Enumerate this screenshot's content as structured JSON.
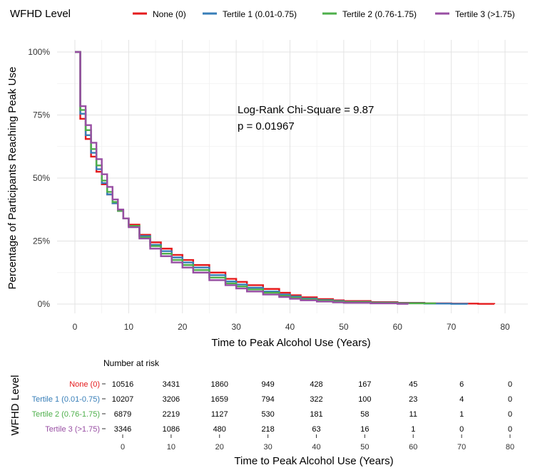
{
  "legend": {
    "title": "WFHD Level",
    "entries": [
      {
        "label": "None (0)",
        "color": "#e41a1c"
      },
      {
        "label": "Tertile 1 (0.01-0.75)",
        "color": "#377eb8"
      },
      {
        "label": "Tertile 2 (0.76-1.75)",
        "color": "#4daf4a"
      },
      {
        "label": "Tertile 3 (>1.75)",
        "color": "#984ea3"
      }
    ]
  },
  "annotation": {
    "line1": "Log-Rank Chi-Square = 9.87",
    "line2": "p = 0.01967"
  },
  "risk_table": {
    "title": "Number at risk",
    "ylabel": "WFHD Level",
    "xlabel": "Time to Peak Alcohol Use (Years)",
    "x_ticks": [
      "0",
      "10",
      "20",
      "30",
      "40",
      "50",
      "60",
      "70",
      "80"
    ],
    "rows": [
      {
        "label": "None (0)",
        "color": "#e41a1c",
        "values": [
          "10516",
          "3431",
          "1860",
          "949",
          "428",
          "167",
          "45",
          "6",
          "0"
        ]
      },
      {
        "label": "Tertile 1 (0.01-0.75)",
        "color": "#377eb8",
        "values": [
          "10207",
          "3206",
          "1659",
          "794",
          "322",
          "100",
          "23",
          "4",
          "0"
        ]
      },
      {
        "label": "Tertile 2 (0.76-1.75)",
        "color": "#4daf4a",
        "values": [
          "6879",
          "2219",
          "1127",
          "530",
          "181",
          "58",
          "11",
          "1",
          "0"
        ]
      },
      {
        "label": "Tertile 3 (>1.75)",
        "color": "#984ea3",
        "values": [
          "3346",
          "1086",
          "480",
          "218",
          "63",
          "16",
          "1",
          "0",
          "0"
        ]
      }
    ]
  },
  "chart_data": {
    "type": "line",
    "step": true,
    "xlabel": "Time to Peak Alcohol Use (Years)",
    "ylabel": "Percentage of Participants Reaching Peak Use",
    "xlim": [
      0,
      80
    ],
    "ylim": [
      0,
      1
    ],
    "x_ticks": [
      "0",
      "10",
      "20",
      "30",
      "40",
      "50",
      "60",
      "70",
      "80"
    ],
    "y_ticks": [
      "0%",
      "25%",
      "50%",
      "75%",
      "100%"
    ],
    "grid": true,
    "legend_position": "top",
    "series": [
      {
        "name": "None (0)",
        "color": "#e41a1c",
        "x": [
          0,
          1,
          2,
          3,
          4,
          5,
          6,
          7,
          8,
          9,
          10,
          12,
          14,
          16,
          18,
          20,
          22,
          25,
          28,
          30,
          32,
          35,
          38,
          40,
          42,
          45,
          48,
          50,
          55,
          60,
          65,
          70,
          75,
          78
        ],
        "y": [
          1,
          0.735,
          0.655,
          0.585,
          0.525,
          0.475,
          0.435,
          0.4,
          0.37,
          0.34,
          0.315,
          0.275,
          0.245,
          0.22,
          0.195,
          0.175,
          0.155,
          0.125,
          0.1,
          0.088,
          0.075,
          0.06,
          0.045,
          0.035,
          0.027,
          0.02,
          0.015,
          0.012,
          0.008,
          0.005,
          0.003,
          0.002,
          0.001,
          0.0
        ]
      },
      {
        "name": "Tertile 1 (0.01-0.75)",
        "color": "#377eb8",
        "x": [
          0,
          1,
          2,
          3,
          4,
          5,
          6,
          7,
          8,
          9,
          10,
          12,
          14,
          16,
          18,
          20,
          22,
          25,
          28,
          30,
          32,
          35,
          38,
          40,
          42,
          45,
          48,
          50,
          55,
          60,
          65,
          70,
          73
        ],
        "y": [
          1,
          0.755,
          0.67,
          0.6,
          0.535,
          0.48,
          0.435,
          0.4,
          0.37,
          0.34,
          0.31,
          0.27,
          0.235,
          0.21,
          0.185,
          0.165,
          0.145,
          0.115,
          0.09,
          0.078,
          0.065,
          0.05,
          0.038,
          0.03,
          0.022,
          0.016,
          0.012,
          0.009,
          0.006,
          0.004,
          0.002,
          0.001,
          0.0
        ]
      },
      {
        "name": "Tertile 2 (0.76-1.75)",
        "color": "#4daf4a",
        "x": [
          0,
          1,
          2,
          3,
          4,
          5,
          6,
          7,
          8,
          9,
          10,
          12,
          14,
          16,
          18,
          20,
          22,
          25,
          28,
          30,
          32,
          35,
          38,
          40,
          42,
          45,
          48,
          50,
          55,
          60,
          67
        ],
        "y": [
          1,
          0.77,
          0.69,
          0.615,
          0.55,
          0.49,
          0.445,
          0.405,
          0.37,
          0.34,
          0.31,
          0.265,
          0.23,
          0.2,
          0.175,
          0.155,
          0.135,
          0.105,
          0.082,
          0.07,
          0.058,
          0.045,
          0.033,
          0.026,
          0.019,
          0.014,
          0.01,
          0.008,
          0.005,
          0.003,
          0.0
        ]
      },
      {
        "name": "Tertile 3 (>1.75)",
        "color": "#984ea3",
        "x": [
          0,
          1,
          2,
          3,
          4,
          5,
          6,
          7,
          8,
          9,
          10,
          12,
          14,
          16,
          18,
          20,
          22,
          25,
          28,
          30,
          32,
          35,
          38,
          40,
          42,
          45,
          48,
          50,
          55,
          60,
          62
        ],
        "y": [
          1,
          0.785,
          0.71,
          0.64,
          0.575,
          0.515,
          0.465,
          0.415,
          0.375,
          0.34,
          0.305,
          0.26,
          0.22,
          0.19,
          0.165,
          0.145,
          0.125,
          0.095,
          0.075,
          0.062,
          0.05,
          0.038,
          0.028,
          0.021,
          0.015,
          0.01,
          0.007,
          0.005,
          0.003,
          0.001,
          0.0
        ]
      }
    ]
  }
}
